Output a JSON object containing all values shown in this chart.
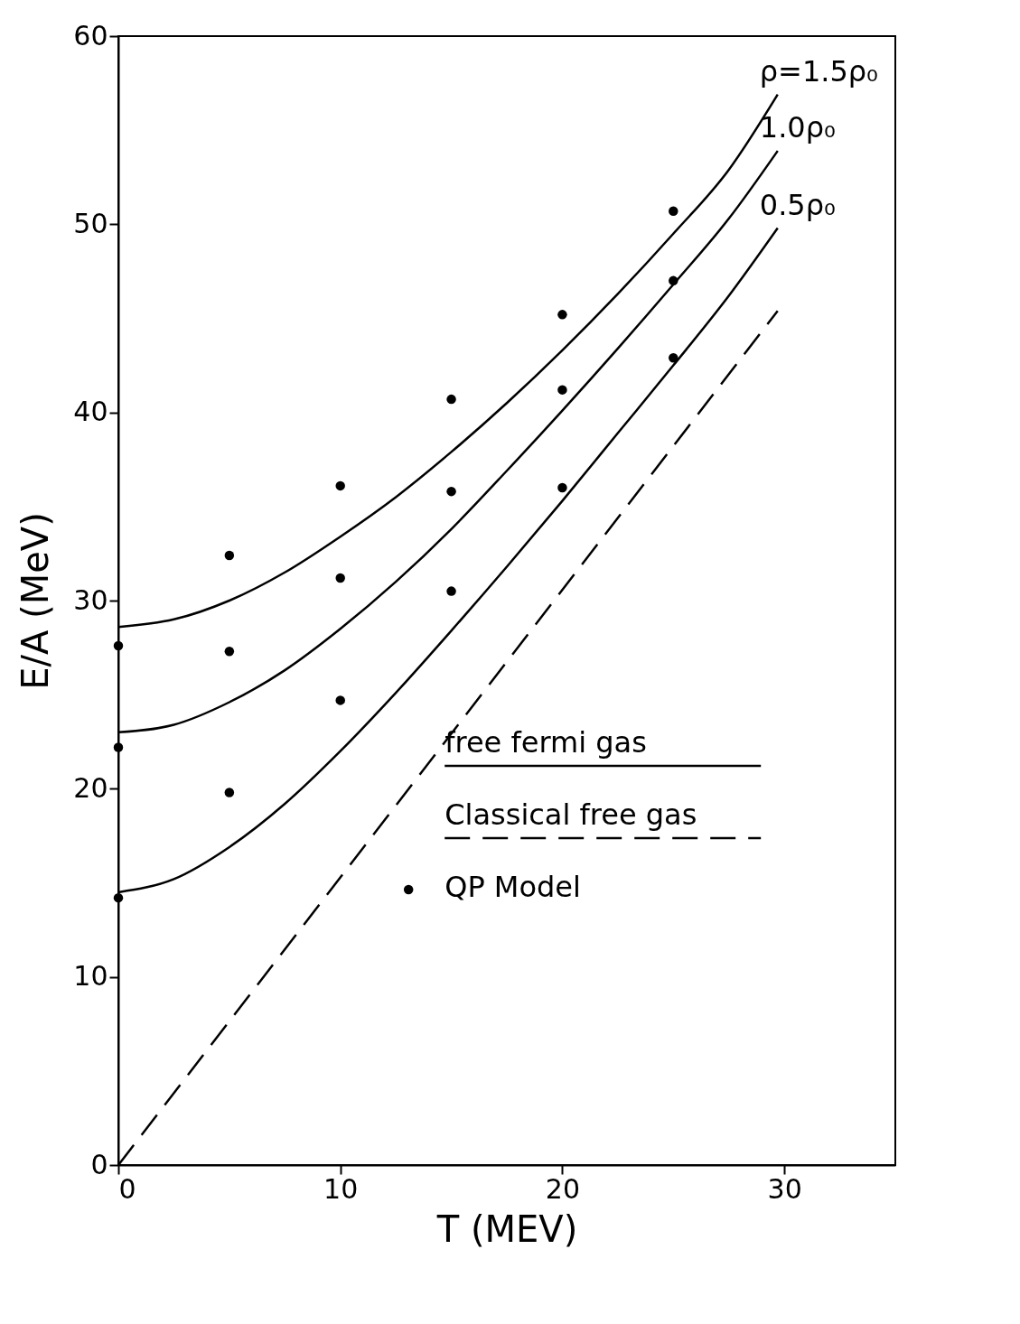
{
  "chart_data": {
    "type": "line",
    "xlabel": "T (MEV)",
    "ylabel": "E/A (MeV)",
    "xlim": [
      0,
      35
    ],
    "ylim": [
      0,
      60
    ],
    "xticks": [
      0,
      10,
      20,
      30
    ],
    "yticks": [
      0,
      10,
      20,
      30,
      40,
      50,
      60
    ],
    "grid": false,
    "legend": "bottom right",
    "annotations": [
      "free fermi gas"
    ],
    "series": [
      {
        "name": "ρ=1.5ρ₀",
        "line_style": "solid",
        "color": "#000000",
        "x": [
          0,
          2.5,
          5,
          7.5,
          10,
          12.5,
          15,
          17.5,
          20,
          22.5,
          25,
          27.5,
          29.7
        ],
        "values": [
          28.6,
          29.0,
          30.0,
          31.5,
          33.4,
          35.5,
          37.9,
          40.5,
          43.3,
          46.3,
          49.5,
          52.9,
          56.9
        ]
      },
      {
        "name": "1.0ρ₀",
        "line_style": "solid",
        "color": "#000000",
        "x": [
          0,
          2.5,
          5,
          7.5,
          10,
          12.5,
          15,
          17.5,
          20,
          22.5,
          25,
          27.5,
          29.7
        ],
        "values": [
          23.0,
          23.4,
          24.6,
          26.3,
          28.5,
          31.0,
          33.8,
          36.9,
          40.1,
          43.4,
          46.8,
          50.3,
          53.9
        ]
      },
      {
        "name": "0.5ρ₀",
        "line_style": "solid",
        "color": "#000000",
        "x": [
          0,
          2.5,
          5,
          7.5,
          10,
          12.5,
          15,
          17.5,
          20,
          22.5,
          25,
          27.5,
          29.7
        ],
        "values": [
          14.5,
          15.2,
          16.9,
          19.2,
          22.0,
          25.1,
          28.4,
          31.8,
          35.3,
          38.9,
          42.5,
          46.2,
          49.8
        ]
      },
      {
        "name": "Classical free gas",
        "line_style": "dashed",
        "color": "#000000",
        "x": [
          0,
          29.7
        ],
        "values": [
          0,
          45.4
        ]
      },
      {
        "name": "QP Model",
        "type": "scatter",
        "marker": "circle",
        "color": "#000000",
        "x": [
          0,
          0,
          0,
          5,
          5,
          5,
          10,
          10,
          10,
          15,
          15,
          15,
          20,
          20,
          20,
          25,
          25,
          25
        ],
        "values": [
          27.6,
          22.2,
          14.2,
          32.4,
          27.3,
          19.8,
          36.1,
          31.2,
          24.7,
          40.7,
          35.8,
          30.5,
          45.2,
          41.2,
          36.0,
          50.7,
          47.0,
          42.9
        ]
      }
    ]
  }
}
